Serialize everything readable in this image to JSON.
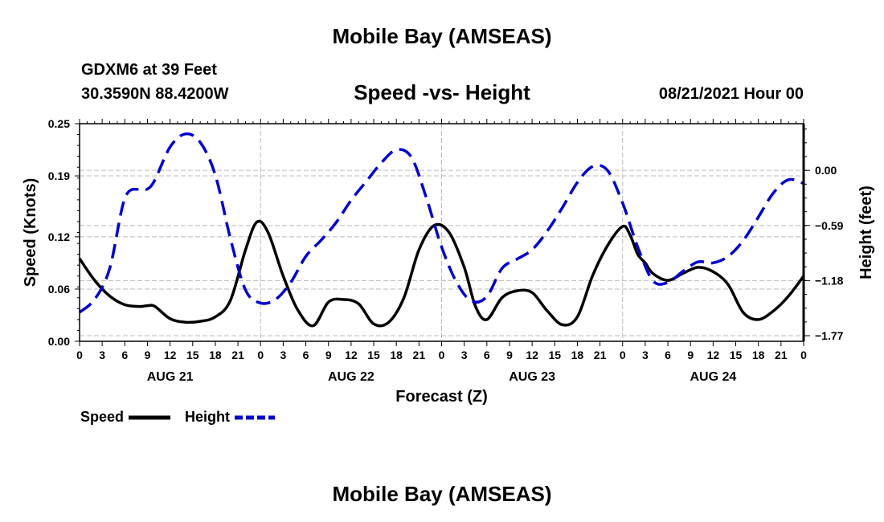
{
  "header": {
    "title": "Mobile Bay (AMSEAS)",
    "station": "GDXM6 at 39 Feet",
    "coords": "30.3590N  88.4200W",
    "subtitle": "Speed -vs- Height",
    "datetime": "08/21/2021 Hour 00"
  },
  "footer": {
    "title": "Mobile Bay (AMSEAS)"
  },
  "chart_data": {
    "type": "line",
    "xlabel": "Forecast (Z)",
    "ylabel_left": "Speed (Knots)",
    "ylabel_right": "Height (feet)",
    "xlim": [
      0,
      96
    ],
    "ylim_left": [
      0,
      0.25
    ],
    "ylim_right": [
      -1.83,
      0.5
    ],
    "x_ticks": [
      0,
      3,
      6,
      9,
      12,
      15,
      18,
      21,
      24,
      27,
      30,
      33,
      36,
      39,
      42,
      45,
      48,
      51,
      54,
      57,
      60,
      63,
      66,
      69,
      72,
      75,
      78,
      81,
      84,
      87,
      90,
      93,
      96
    ],
    "x_tick_labels": [
      "0",
      "3",
      "6",
      "9",
      "12",
      "15",
      "18",
      "21",
      "0",
      "3",
      "6",
      "9",
      "12",
      "15",
      "18",
      "21",
      "0",
      "3",
      "6",
      "9",
      "12",
      "15",
      "18",
      "21",
      "0",
      "3",
      "6",
      "9",
      "12",
      "15",
      "18",
      "21",
      "0"
    ],
    "day_labels": [
      {
        "x": 12,
        "label": "AUG 21"
      },
      {
        "x": 36,
        "label": "AUG 22"
      },
      {
        "x": 60,
        "label": "AUG 23"
      },
      {
        "x": 84,
        "label": "AUG 24"
      }
    ],
    "y_left_ticks": [
      0.0,
      0.06,
      0.12,
      0.19,
      0.25
    ],
    "y_left_tick_labels": [
      "0.00",
      "0.06",
      "0.12",
      "0.19",
      "0.25"
    ],
    "y_right_ticks": [
      0.0,
      -0.59,
      -1.18,
      -1.77
    ],
    "y_right_tick_labels": [
      "0.00",
      "−0.59",
      "−1.18",
      "−1.77"
    ],
    "grid": true,
    "series": [
      {
        "name": "Speed",
        "axis": "left",
        "color": "#000000",
        "style": "solid",
        "x": [
          0,
          2,
          4,
          6,
          8,
          9,
          10,
          12,
          14,
          16,
          18,
          20,
          22,
          23.5,
          25,
          27,
          29,
          31,
          33,
          35,
          37,
          39,
          41,
          43,
          45,
          47,
          49,
          51,
          52.5,
          54,
          56,
          58,
          60,
          62,
          64,
          66,
          68,
          70,
          72,
          73,
          74,
          75,
          76,
          78,
          80,
          82,
          84,
          86,
          88,
          90,
          92,
          94,
          96
        ],
        "values": [
          0.095,
          0.07,
          0.052,
          0.042,
          0.04,
          0.041,
          0.04,
          0.026,
          0.022,
          0.023,
          0.028,
          0.047,
          0.105,
          0.137,
          0.125,
          0.075,
          0.035,
          0.018,
          0.045,
          0.048,
          0.043,
          0.02,
          0.022,
          0.05,
          0.105,
          0.133,
          0.125,
          0.085,
          0.04,
          0.025,
          0.05,
          0.058,
          0.056,
          0.035,
          0.019,
          0.028,
          0.075,
          0.11,
          0.132,
          0.122,
          0.1,
          0.09,
          0.078,
          0.07,
          0.078,
          0.085,
          0.08,
          0.065,
          0.033,
          0.025,
          0.035,
          0.052,
          0.075
        ]
      },
      {
        "name": "Height",
        "axis": "right",
        "color": "#0000cc",
        "style": "dashed",
        "x": [
          0,
          2,
          4,
          6,
          8,
          9,
          10,
          12,
          14,
          16,
          18,
          20,
          22,
          24,
          26,
          28,
          30,
          32,
          34,
          36,
          38,
          40,
          42,
          44,
          46,
          48,
          50,
          52,
          54,
          56,
          58,
          60,
          62,
          64,
          66,
          68,
          70,
          72,
          74,
          76,
          78,
          80,
          82,
          84,
          86,
          88,
          90,
          92,
          94,
          96
        ],
        "values": [
          -1.52,
          -1.38,
          -1.05,
          -0.3,
          -0.2,
          -0.2,
          -0.1,
          0.25,
          0.39,
          0.3,
          -0.05,
          -0.73,
          -1.28,
          -1.42,
          -1.38,
          -1.2,
          -0.92,
          -0.75,
          -0.56,
          -0.32,
          -0.12,
          0.08,
          0.22,
          0.14,
          -0.3,
          -0.82,
          -1.2,
          -1.4,
          -1.35,
          -1.05,
          -0.95,
          -0.85,
          -0.65,
          -0.4,
          -0.13,
          0.04,
          0.0,
          -0.35,
          -0.82,
          -1.18,
          -1.2,
          -1.08,
          -0.98,
          -0.99,
          -0.92,
          -0.75,
          -0.5,
          -0.24,
          -0.1,
          -0.14
        ]
      }
    ],
    "legend": [
      {
        "label": "Speed",
        "color": "#000000",
        "style": "solid"
      },
      {
        "label": "Height",
        "color": "#0000cc",
        "style": "dashed"
      }
    ]
  }
}
